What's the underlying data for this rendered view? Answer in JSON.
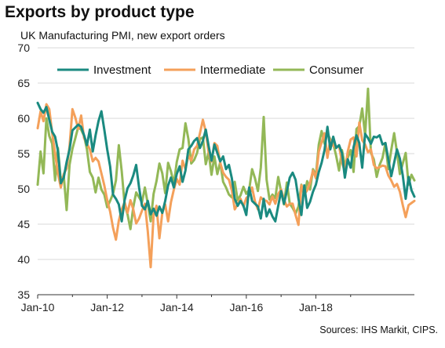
{
  "title": "Exports by product type",
  "subtitle": "UK Manufacturing PMI, new export orders",
  "source": "Sources: IHS Markit, CIPS.",
  "chart_data": {
    "type": "line",
    "title": "Exports by product type",
    "subtitle": "UK Manufacturing PMI, new export orders",
    "xlabel": "",
    "ylabel": "",
    "ylim": [
      35,
      70
    ],
    "yticks": [
      35,
      40,
      45,
      50,
      55,
      60,
      65,
      70
    ],
    "xticks": [
      "Jan-10",
      "Jan-12",
      "Jan-14",
      "Jan-16",
      "Jan-18"
    ],
    "x_start": "Jan-10",
    "x_frequency": "monthly",
    "grid": true,
    "legend": "top",
    "series": [
      {
        "name": "Investment",
        "color": "#1a8a80",
        "values": [
          62.2,
          61.3,
          60.8,
          61.6,
          59.8,
          58.1,
          57.4,
          55.4,
          50.8,
          51.6,
          53.8,
          55.6,
          58.3,
          58.7,
          59.1,
          58.8,
          57.6,
          56.2,
          58.4,
          55.3,
          57.6,
          59.6,
          61.0,
          58.4,
          55.6,
          53.2,
          49.2,
          48.6,
          47.8,
          45.4,
          48.4,
          50.1,
          50.8,
          51.9,
          53.4,
          50.2,
          47.6,
          47.1,
          48.3,
          46.4,
          47.2,
          46.2,
          47.5,
          46.6,
          48.3,
          50.5,
          51.6,
          50.2,
          52.1,
          53.2,
          51.0,
          52.6,
          55.6,
          56.1,
          56.8,
          57.2,
          55.8,
          56.8,
          58.4,
          56.1,
          54.0,
          56.3,
          55.1,
          53.9,
          54.6,
          52.8,
          53.4,
          51.5,
          48.6,
          47.6,
          48.3,
          47.6,
          46.3,
          50.2,
          48.3,
          47.9,
          47.5,
          45.8,
          48.6,
          46.1,
          47.1,
          46.1,
          45.4,
          47.6,
          49.7,
          47.9,
          49.7,
          51.6,
          52.3,
          51.3,
          48.6,
          46.3,
          50.5,
          47.3,
          48.2,
          49.6,
          50.6,
          52.4,
          53.7,
          55.5,
          58.8,
          55.6,
          57.4,
          55.8,
          56.2,
          55.1,
          51.6,
          54.2,
          53.0,
          55.9,
          57.6,
          56.5,
          53.0,
          57.8,
          57.2,
          56.4,
          57.4,
          57.3,
          57.6,
          56.3,
          56.5,
          54.2,
          51.8,
          53.7,
          55.6,
          54.3,
          51.9,
          48.6,
          51.7,
          49.8,
          48.9
        ]
      },
      {
        "name": "Intermediate",
        "color": "#f4a05a",
        "values": [
          58.6,
          61.0,
          59.6,
          62.0,
          61.3,
          57.9,
          55.0,
          52.2,
          50.2,
          52.1,
          52.9,
          56.0,
          61.3,
          60.1,
          58.5,
          60.4,
          57.2,
          56.4,
          55.6,
          53.9,
          54.4,
          53.9,
          52.2,
          50.5,
          48.4,
          46.8,
          44.5,
          42.8,
          45.5,
          47.1,
          48.1,
          46.6,
          48.4,
          47.1,
          45.1,
          45.8,
          46.9,
          47.9,
          44.0,
          38.9,
          46.3,
          47.6,
          43.0,
          46.6,
          47.8,
          45.4,
          48.1,
          49.9,
          51.4,
          50.6,
          54.0,
          52.8,
          54.7,
          54.0,
          55.6,
          56.1,
          57.9,
          59.8,
          58.1,
          55.2,
          53.9,
          56.5,
          56.1,
          53.7,
          52.3,
          51.7,
          51.3,
          49.8,
          47.1,
          47.8,
          48.6,
          47.5,
          48.7,
          49.1,
          50.2,
          48.2,
          47.1,
          48.8,
          48.4,
          48.3,
          47.8,
          48.9,
          47.9,
          49.3,
          49.9,
          48.5,
          47.5,
          47.9,
          47.9,
          46.3,
          44.9,
          50.5,
          49.2,
          49.8,
          50.9,
          52.6,
          51.5,
          55.3,
          56.6,
          57.9,
          54.4,
          57.0,
          56.1,
          55.9,
          56.1,
          53.8,
          52.4,
          55.3,
          57.0,
          57.3,
          54.6,
          59.4,
          56.9,
          56.3,
          55.2,
          55.6,
          53.4,
          52.9,
          53.1,
          53.3,
          53.2,
          51.9,
          51.2,
          50.3,
          50.7,
          49.6,
          47.7,
          46.0,
          47.7,
          48.0,
          48.3
        ]
      },
      {
        "name": "Consumer",
        "color": "#93b857",
        "values": [
          50.6,
          55.3,
          52.2,
          60.0,
          57.5,
          56.4,
          51.2,
          55.8,
          51.2,
          51.9,
          47.0,
          53.4,
          55.7,
          57.2,
          58.8,
          58.4,
          57.5,
          55.6,
          52.4,
          51.6,
          49.5,
          51.6,
          49.9,
          49.2,
          47.4,
          48.3,
          49.3,
          51.2,
          56.2,
          52.5,
          47.8,
          46.4,
          44.3,
          47.4,
          49.5,
          48.8,
          48.1,
          50.2,
          47.9,
          45.4,
          49.3,
          51.1,
          53.6,
          52.2,
          49.4,
          53.7,
          52.5,
          50.7,
          53.8,
          55.6,
          55.8,
          59.3,
          57.1,
          53.6,
          54.1,
          55.1,
          57.1,
          57.3,
          53.5,
          55.2,
          52.0,
          54.6,
          52.1,
          53.8,
          51.0,
          50.2,
          49.2,
          48.8,
          51.0,
          48.4,
          49.1,
          50.3,
          49.3,
          49.9,
          52.8,
          51.5,
          49.7,
          53.0,
          60.2,
          51.3,
          48.5,
          49.2,
          48.7,
          51.7,
          49.6,
          47.8,
          50.9,
          47.9,
          47.3,
          46.5,
          47.5,
          50.6,
          49.1,
          51.1,
          49.9,
          52.8,
          51.9,
          56.3,
          58.2,
          56.4,
          57.9,
          57.0,
          56.4,
          54.7,
          52.6,
          55.5,
          53.4,
          54.4,
          55.5,
          52.4,
          58.5,
          58.9,
          61.4,
          57.6,
          64.2,
          55.1,
          54.2,
          51.7,
          53.4,
          54.4,
          56.5,
          52.8,
          55.5,
          57.9,
          55.2,
          52.1,
          53.6,
          55.1,
          50.6,
          52.0,
          51.2
        ]
      }
    ]
  }
}
